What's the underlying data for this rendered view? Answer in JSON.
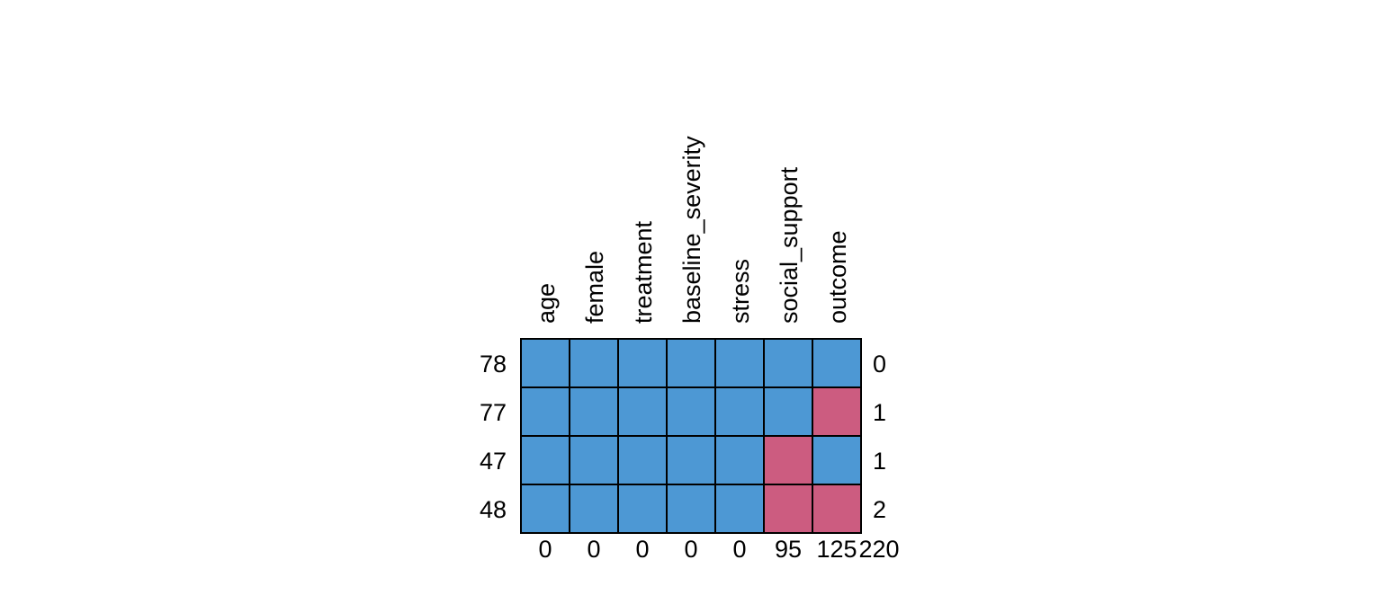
{
  "colors": {
    "observed": "#4d98d4",
    "missing": "#cc5c80",
    "border": "#000000"
  },
  "chart_data": {
    "type": "heatmap",
    "variables": [
      "age",
      "female",
      "treatment",
      "baseline_severity",
      "stress",
      "social_support",
      "outcome"
    ],
    "patterns": [
      {
        "count": "78",
        "missing_vars": "0",
        "cells": [
          1,
          1,
          1,
          1,
          1,
          1,
          1
        ]
      },
      {
        "count": "77",
        "missing_vars": "1",
        "cells": [
          1,
          1,
          1,
          1,
          1,
          1,
          0
        ]
      },
      {
        "count": "47",
        "missing_vars": "1",
        "cells": [
          1,
          1,
          1,
          1,
          1,
          0,
          1
        ]
      },
      {
        "count": "48",
        "missing_vars": "2",
        "cells": [
          1,
          1,
          1,
          1,
          1,
          0,
          0
        ]
      }
    ],
    "missing_per_variable": [
      "0",
      "0",
      "0",
      "0",
      "0",
      "95",
      "125"
    ],
    "total_missing": "220"
  }
}
